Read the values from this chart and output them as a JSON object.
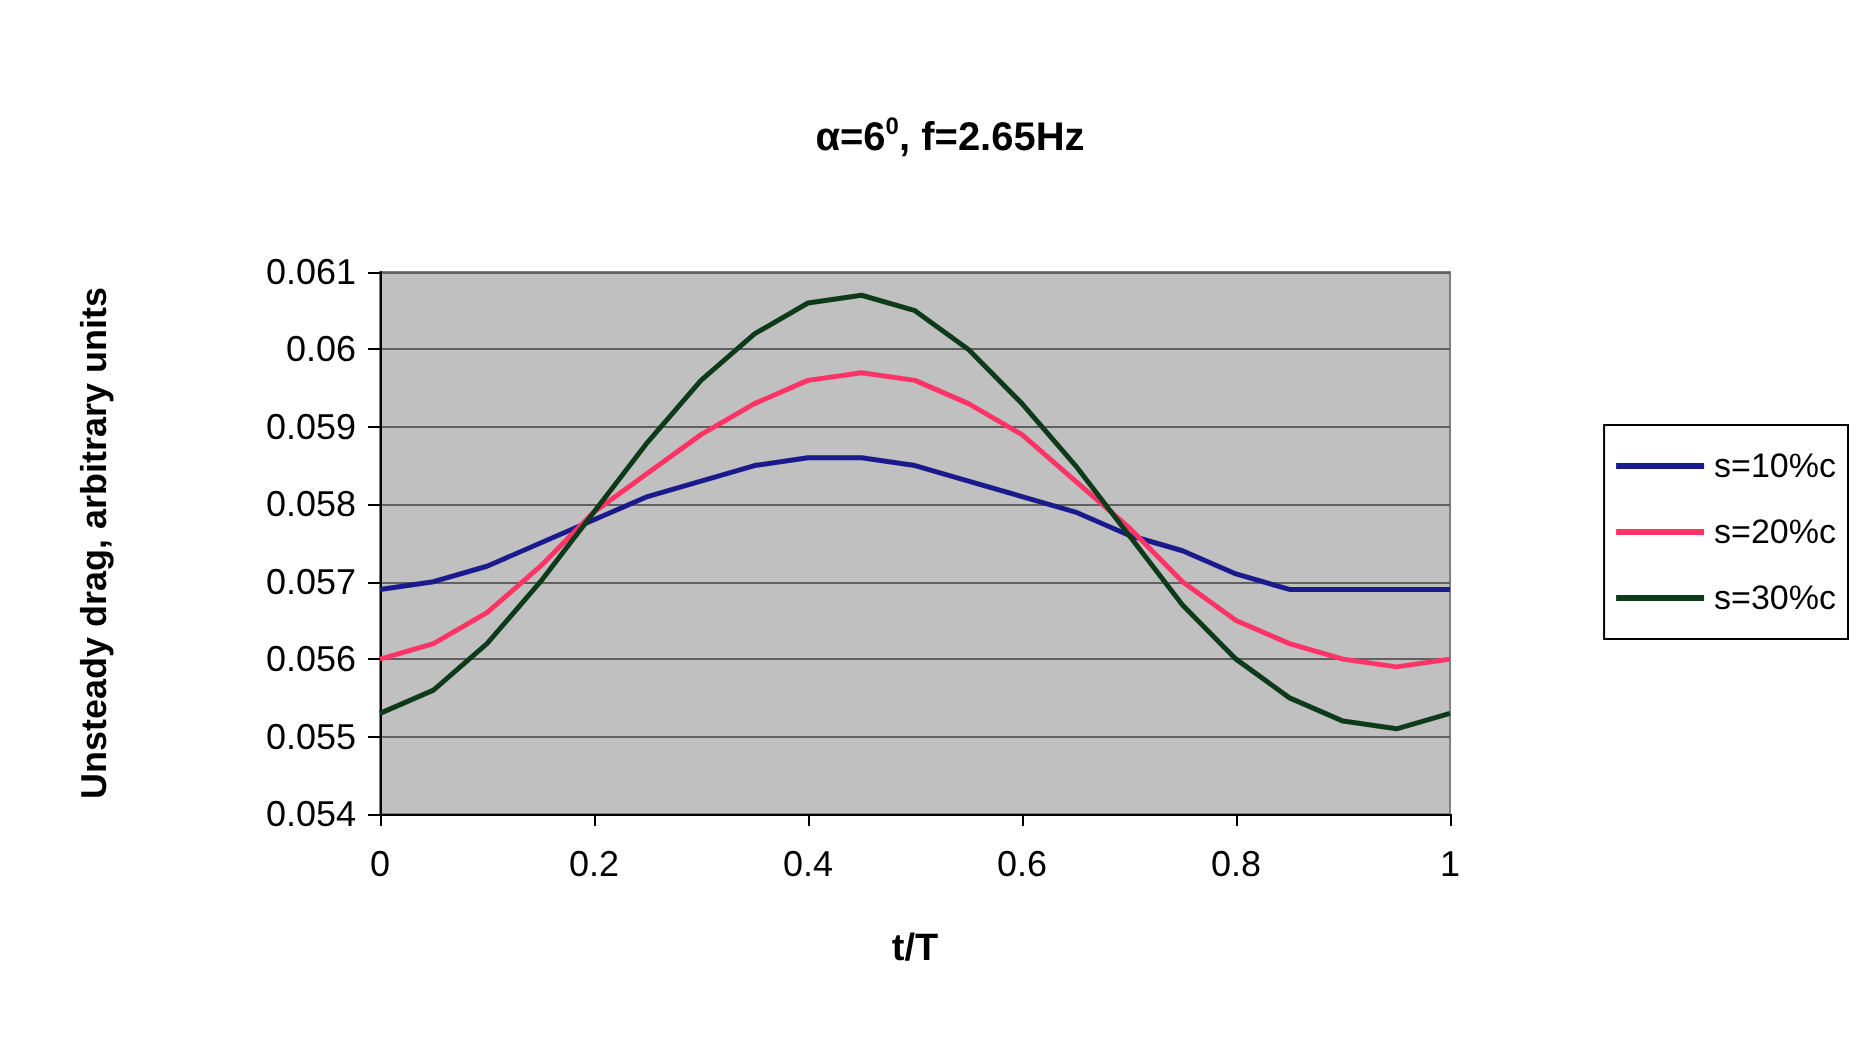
{
  "chart_data": {
    "type": "line",
    "title": "α=6$^{0}$, f=2.65Hz",
    "xlabel": "t/T",
    "ylabel": "Unsteady drag, arbitrary units",
    "x": [
      0,
      0.05,
      0.1,
      0.15,
      0.2,
      0.25,
      0.3,
      0.35,
      0.4,
      0.45,
      0.5,
      0.55,
      0.6,
      0.65,
      0.7,
      0.75,
      0.8,
      0.85,
      0.9,
      0.95,
      1
    ],
    "series": [
      {
        "name": "s=10%c",
        "color": "#1a1a8c",
        "values": [
          0.0569,
          0.057,
          0.0572,
          0.0575,
          0.0578,
          0.0581,
          0.0583,
          0.0585,
          0.0586,
          0.0586,
          0.0585,
          0.0583,
          0.0581,
          0.0579,
          0.0576,
          0.0574,
          0.0571,
          0.0569,
          0.0569,
          0.0569,
          0.0569
        ]
      },
      {
        "name": "s=20%c",
        "color": "#ff3366",
        "values": [
          0.056,
          0.0562,
          0.0566,
          0.0572,
          0.0579,
          0.0584,
          0.0589,
          0.0593,
          0.0596,
          0.0597,
          0.0596,
          0.0593,
          0.0589,
          0.0583,
          0.0577,
          0.057,
          0.0565,
          0.0562,
          0.056,
          0.0559,
          0.056
        ]
      },
      {
        "name": "s=30%c",
        "color": "#0d3b1a",
        "values": [
          0.0553,
          0.0556,
          0.0562,
          0.057,
          0.0579,
          0.0588,
          0.0596,
          0.0602,
          0.0606,
          0.0607,
          0.0605,
          0.06,
          0.0593,
          0.0585,
          0.0576,
          0.0567,
          0.056,
          0.0555,
          0.0552,
          0.0551,
          0.0553
        ]
      }
    ],
    "xlim": [
      0,
      1
    ],
    "xticks": [
      0,
      0.2,
      0.4,
      0.6,
      0.8,
      1
    ],
    "ylim": [
      0.054,
      0.061
    ],
    "yticks": [
      0.054,
      0.055,
      0.056,
      0.057,
      0.058,
      0.059,
      0.06,
      0.061
    ],
    "grid": "y",
    "legend": "right",
    "marker": "none",
    "line_style": "solid"
  }
}
